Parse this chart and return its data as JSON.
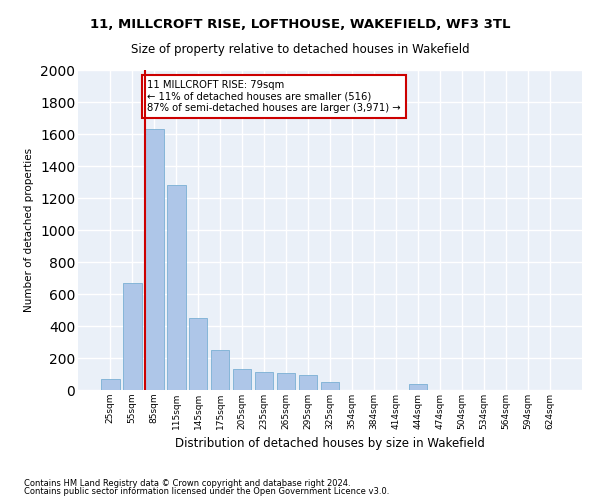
{
  "title1": "11, MILLCROFT RISE, LOFTHOUSE, WAKEFIELD, WF3 3TL",
  "title2": "Size of property relative to detached houses in Wakefield",
  "xlabel": "Distribution of detached houses by size in Wakefield",
  "ylabel": "Number of detached properties",
  "footnote1": "Contains HM Land Registry data © Crown copyright and database right 2024.",
  "footnote2": "Contains public sector information licensed under the Open Government Licence v3.0.",
  "annotation_line1": "11 MILLCROFT RISE: 79sqm",
  "annotation_line2": "← 11% of detached houses are smaller (516)",
  "annotation_line3": "87% of semi-detached houses are larger (3,971) →",
  "bar_categories": [
    "25sqm",
    "55sqm",
    "85sqm",
    "115sqm",
    "145sqm",
    "175sqm",
    "205sqm",
    "235sqm",
    "265sqm",
    "295sqm",
    "325sqm",
    "354sqm",
    "384sqm",
    "414sqm",
    "444sqm",
    "474sqm",
    "504sqm",
    "534sqm",
    "564sqm",
    "594sqm",
    "624sqm"
  ],
  "bar_values": [
    70,
    670,
    1630,
    1280,
    450,
    250,
    130,
    115,
    105,
    95,
    50,
    0,
    0,
    0,
    40,
    0,
    0,
    0,
    0,
    0,
    0
  ],
  "bar_color": "#aec6e8",
  "bar_edge_color": "#7aafd4",
  "background_color": "#eaf0f8",
  "grid_color": "#ffffff",
  "vline_color": "#cc0000",
  "annotation_box_color": "#cc0000",
  "ylim": [
    0,
    2000
  ],
  "yticks": [
    0,
    200,
    400,
    600,
    800,
    1000,
    1200,
    1400,
    1600,
    1800,
    2000
  ]
}
